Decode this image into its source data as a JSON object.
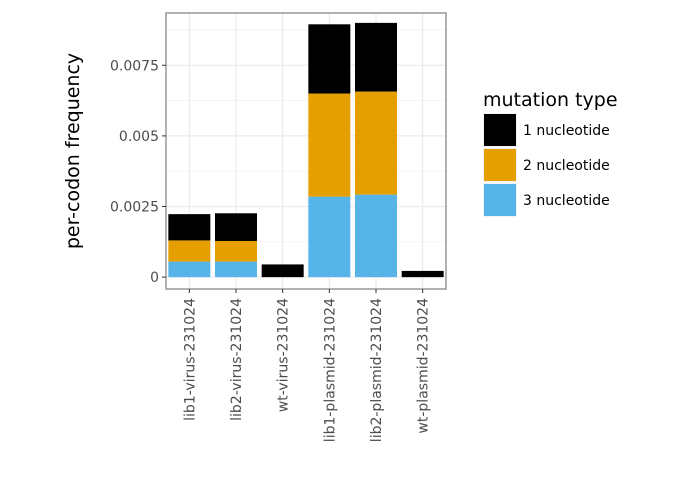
{
  "chart_data": {
    "type": "bar",
    "stacked": true,
    "categories": [
      "lib1-virus-231024",
      "lib2-virus-231024",
      "wt-virus-231024",
      "lib1-plasmid-231024",
      "lib2-plasmid-231024",
      "wt-plasmid-231024"
    ],
    "series": [
      {
        "name": "3 nucleotide",
        "color": "#56b4e9",
        "values": [
          0.00055,
          0.00055,
          0.0,
          0.00285,
          0.00292,
          0.0
        ]
      },
      {
        "name": "2 nucleotide",
        "color": "#e69f00",
        "values": [
          0.00075,
          0.00073,
          0.0,
          0.00365,
          0.00365,
          0.0
        ]
      },
      {
        "name": "1 nucleotide",
        "color": "#000000",
        "values": [
          0.00093,
          0.00098,
          0.00045,
          0.00245,
          0.00243,
          0.00022
        ]
      }
    ],
    "legend_order": [
      "1 nucleotide",
      "2 nucleotide",
      "3 nucleotide"
    ],
    "title": "",
    "xlabel": "",
    "ylabel": "per-codon frequency",
    "ylim": [
      -0.00042,
      0.00935
    ],
    "yticks": [
      0,
      0.0025,
      0.005,
      0.0075
    ],
    "ytick_labels": [
      "0",
      "0.0025",
      "0.005",
      "0.0075"
    ],
    "legend_title": "mutation type",
    "legend_position": "right",
    "grid": true
  }
}
